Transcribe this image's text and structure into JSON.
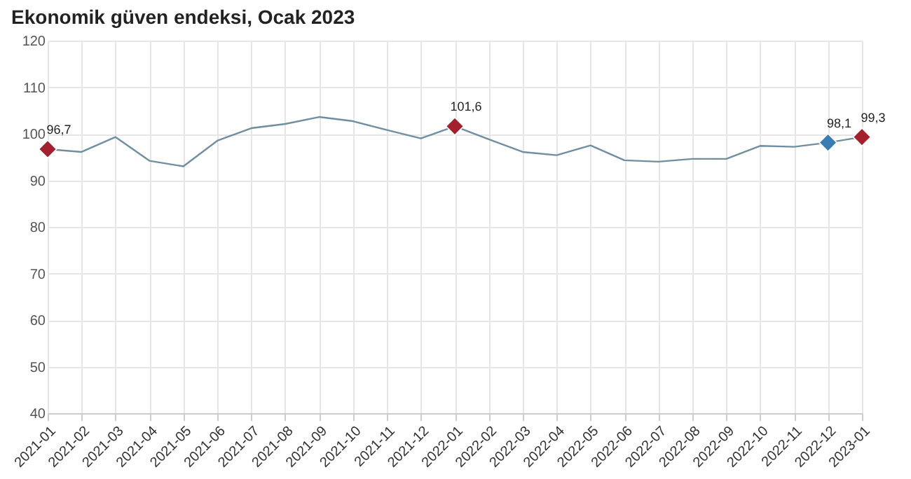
{
  "chart_data": {
    "type": "line",
    "title": "Ekonomik güven endeksi, Ocak 2023",
    "categories": [
      "2021-01",
      "2021-02",
      "2021-03",
      "2021-04",
      "2021-05",
      "2021-06",
      "2021-07",
      "2021-08",
      "2021-09",
      "2021-10",
      "2021-11",
      "2021-12",
      "2022-01",
      "2022-02",
      "2022-03",
      "2022-04",
      "2022-05",
      "2022-06",
      "2022-07",
      "2022-08",
      "2022-09",
      "2022-10",
      "2022-11",
      "2022-12",
      "2023-01"
    ],
    "series": [
      {
        "color": "#6f8fa0",
        "marker": "none",
        "values": [
          96.7,
          96.1,
          99.3,
          94.2,
          93.0,
          98.5,
          101.2,
          102.1,
          103.6,
          102.7,
          100.8,
          99.0,
          101.6,
          98.8,
          96.1,
          95.4,
          97.5,
          94.3,
          94.0,
          94.6,
          94.6,
          97.4,
          97.2,
          98.1,
          99.3
        ]
      },
      {
        "type": "scatter",
        "marker": "diamond",
        "colors": [
          "#a3202f",
          null,
          null,
          null,
          null,
          null,
          null,
          null,
          null,
          null,
          null,
          null,
          "#a3202f",
          null,
          null,
          null,
          null,
          null,
          null,
          null,
          null,
          null,
          null,
          "#3a7db5",
          "#a3202f"
        ],
        "values": [
          96.7,
          null,
          null,
          null,
          null,
          null,
          null,
          null,
          null,
          null,
          null,
          null,
          101.6,
          null,
          null,
          null,
          null,
          null,
          null,
          null,
          null,
          null,
          null,
          98.1,
          99.3
        ],
        "value_labels": [
          "96,7",
          null,
          null,
          null,
          null,
          null,
          null,
          null,
          null,
          null,
          null,
          null,
          "101,6",
          null,
          null,
          null,
          null,
          null,
          null,
          null,
          null,
          null,
          null,
          "98,1",
          "99,3"
        ]
      }
    ],
    "ylim": [
      40,
      120
    ],
    "yticks": [
      40,
      50,
      60,
      70,
      80,
      90,
      100,
      110,
      120
    ],
    "grid": true
  }
}
